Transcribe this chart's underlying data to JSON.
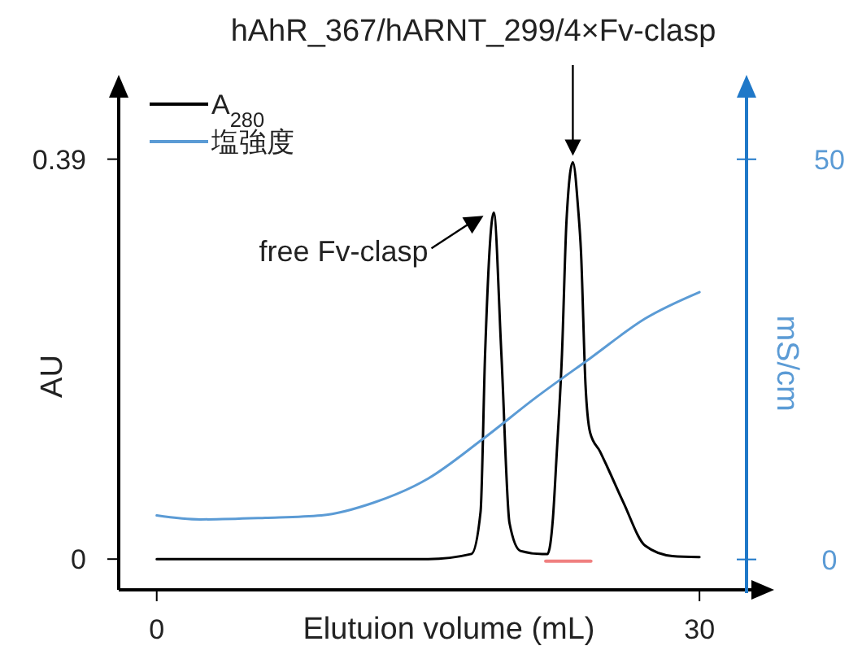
{
  "chart_data": {
    "type": "line",
    "title": "hAhR_367/hARNT_299/4×Fv-clasp",
    "xlabel": "Elutuion volume (mL)",
    "ylabel": "AU",
    "y2label": "mS/cm",
    "xlim": [
      -2.1,
      32.6
    ],
    "xticks": [
      0,
      30
    ],
    "ylim": [
      -0.03,
      0.45
    ],
    "yticks": [
      0,
      0.39
    ],
    "y2lim": [
      -3.8,
      57.7
    ],
    "y2ticks": [
      0,
      50
    ],
    "legend": "top left",
    "grid": false,
    "marker": "none",
    "line_style": "solid",
    "annotations": [
      {
        "text": "free Fv-clasp",
        "x": 18.6,
        "y": 0.338
      }
    ],
    "series": [
      {
        "name": "A$_{280}$",
        "color": "#000000",
        "x": [
          0,
          5,
          10,
          15,
          17.4,
          17.9,
          18.15,
          18.63,
          19.05,
          19.5,
          20.1,
          21.3,
          21.6,
          21.9,
          22.1,
          22.4,
          22.65,
          23.0,
          23.3,
          23.45,
          23.7,
          23.96,
          24.5,
          24.9,
          25.8,
          27.0,
          28.5,
          30
        ],
        "values": [
          0,
          0,
          0,
          0,
          0.005,
          0.046,
          0.2,
          0.338,
          0.2,
          0.035,
          0.008,
          0.005,
          0.005,
          0.04,
          0.1,
          0.2,
          0.33,
          0.387,
          0.34,
          0.3,
          0.17,
          0.123,
          0.105,
          0.09,
          0.055,
          0.013,
          0.003,
          0.002
        ]
      },
      {
        "name": "塩強度",
        "color": "#5b9bd5",
        "axis": "y2",
        "x": [
          0,
          2.4,
          6,
          9.1,
          12,
          15,
          18,
          21,
          24,
          27,
          30
        ],
        "values": [
          5.5,
          5.0,
          5.2,
          5.5,
          7.1,
          10.1,
          15,
          20.3,
          25.2,
          30.1,
          33.4
        ]
      },
      {
        "color": "#f08080",
        "x": [
          21.5,
          24
        ],
        "values": [
          -0.002,
          -0.002
        ]
      }
    ]
  }
}
